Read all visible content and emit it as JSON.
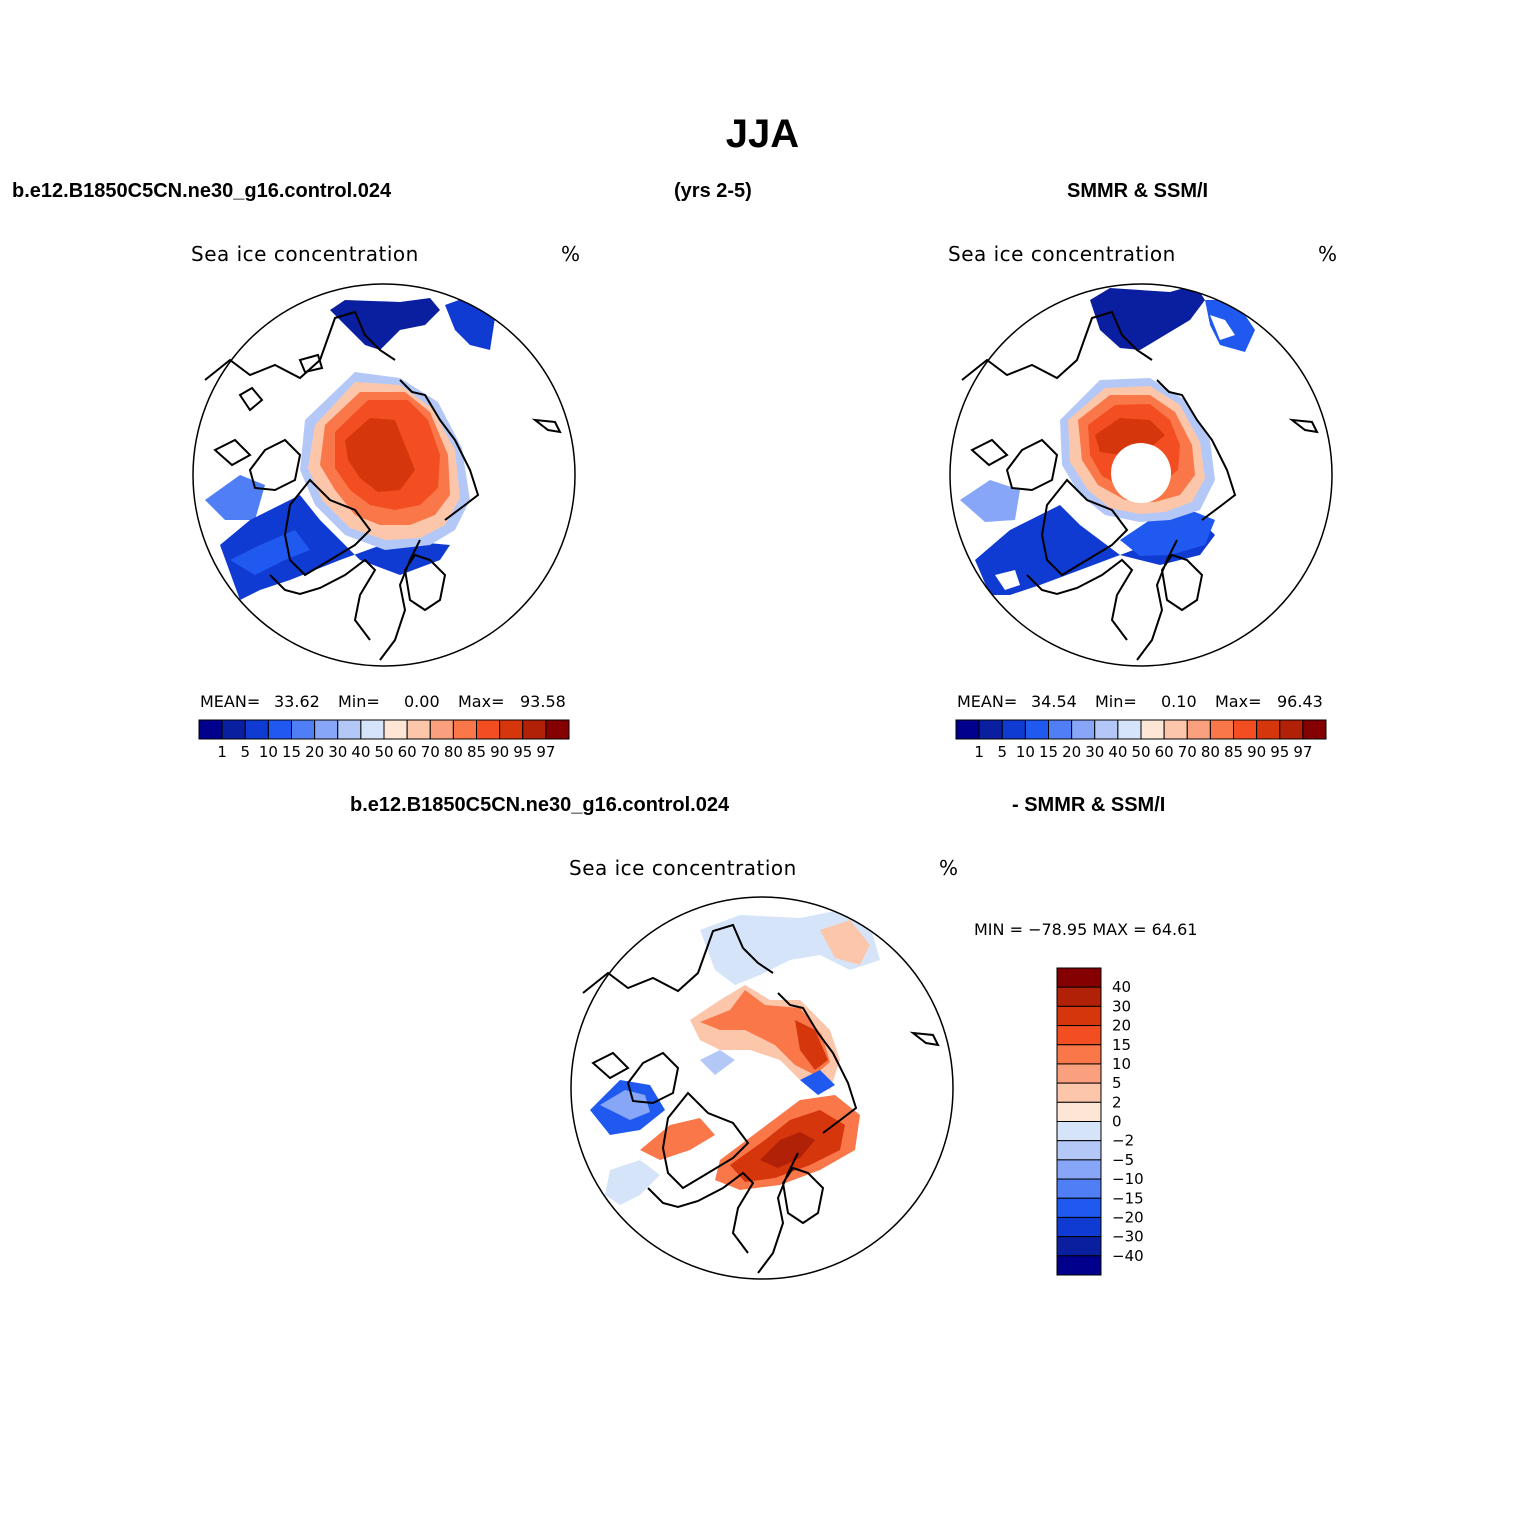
{
  "figure": {
    "title": "JJA",
    "header_left": "b.e12.B1850C5CN.ne30_g16.control.024",
    "header_center": "(yrs 2-5)",
    "header_right": "SMMR & SSM/I",
    "diff_header_left": "b.e12.B1850C5CN.ne30_g16.control.024",
    "diff_header_right": "- SMMR & SSM/I"
  },
  "panels": [
    {
      "id": "model",
      "variable": "Sea ice concentration",
      "units": "%",
      "mean_label": "MEAN=",
      "mean": "33.62",
      "min_label": "Min=",
      "min": "0.00",
      "max_label": "Max=",
      "max": "93.58"
    },
    {
      "id": "obs",
      "variable": "Sea ice concentration",
      "units": "%",
      "mean_label": "MEAN=",
      "mean": "34.54",
      "min_label": "Min=",
      "min": "0.10",
      "max_label": "Max=",
      "max": "96.43"
    },
    {
      "id": "diff",
      "variable": "Sea ice concentration",
      "units": "%",
      "minmax_text": "MIN = −78.95 MAX =   64.61"
    }
  ],
  "colorbar_abs": {
    "levels": [
      "1",
      "5",
      "10",
      "15",
      "20",
      "30",
      "40",
      "50",
      "60",
      "70",
      "80",
      "85",
      "90",
      "95",
      "97"
    ],
    "colors": [
      "#00008c",
      "#0a1fa0",
      "#0f3bd2",
      "#1f59f0",
      "#4f7ef5",
      "#87a6f7",
      "#b4c8f8",
      "#d6e4f9",
      "#fde6d6",
      "#fcc6aa",
      "#fba07e",
      "#f97749",
      "#f34e22",
      "#d6360b",
      "#b02108",
      "#850000"
    ]
  },
  "colorbar_diff": {
    "levels": [
      "40",
      "30",
      "20",
      "15",
      "10",
      "5",
      "2",
      "0",
      "−2",
      "−5",
      "−10",
      "−15",
      "−20",
      "−30",
      "−40"
    ],
    "colors": [
      "#850000",
      "#b02108",
      "#d6360b",
      "#f34e22",
      "#f97749",
      "#fba07e",
      "#fcc6aa",
      "#fde6d6",
      "#d6e4f9",
      "#b4c8f8",
      "#87a6f7",
      "#4f7ef5",
      "#1f59f0",
      "#0f3bd2",
      "#0a1fa0",
      "#00008c"
    ]
  }
}
